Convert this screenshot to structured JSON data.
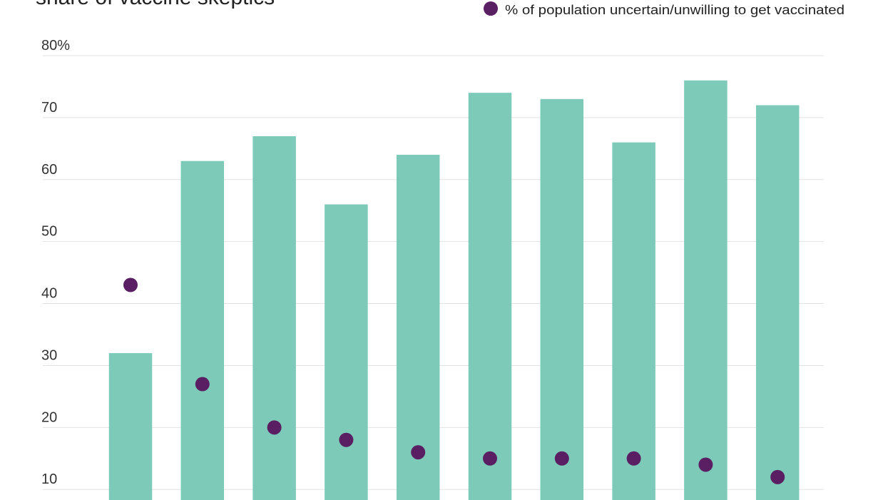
{
  "chart_data": {
    "type": "bar",
    "title": "share of vaccine skeptics",
    "categories": [
      null,
      null,
      null,
      null,
      null,
      null,
      null,
      null,
      null,
      null
    ],
    "series": [
      {
        "color": "#7dcab9",
        "values": [
          32,
          63,
          67,
          56,
          64,
          74,
          73,
          66,
          76,
          72
        ]
      },
      {
        "name": "% of population uncertain/unwilling to get vaccinated",
        "type": "scatter",
        "color": "#5a1f63",
        "values": [
          43,
          27,
          20,
          18,
          16,
          15,
          15,
          15,
          14,
          12
        ]
      }
    ],
    "ylim": [
      8.3,
      80
    ],
    "yticks": [
      10,
      20,
      30,
      40,
      50,
      60,
      70,
      {
        "value": 80,
        "label": "80%"
      }
    ],
    "grid": true
  }
}
